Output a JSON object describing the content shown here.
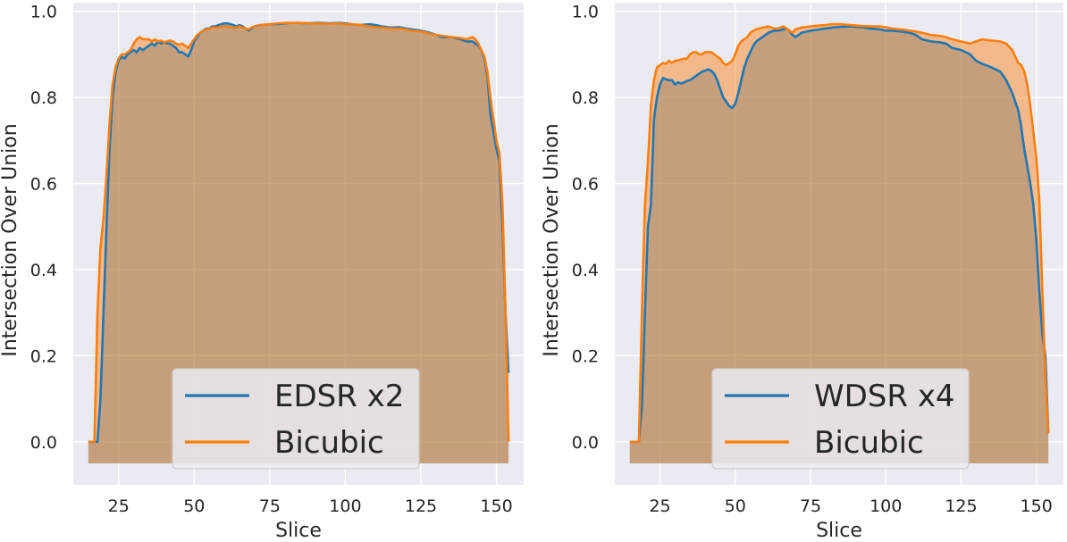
{
  "chart_data": [
    {
      "type": "area",
      "title": "",
      "xlabel": "Slice",
      "ylabel": "Intersection Over Union",
      "xlim": [
        10,
        159
      ],
      "ylim": [
        -0.1,
        1.02
      ],
      "xticks": [
        "25",
        "50",
        "75",
        "100",
        "125",
        "150"
      ],
      "xtick_values": [
        25,
        50,
        75,
        100,
        125,
        150
      ],
      "yticks": [
        "0.0",
        "0.2",
        "0.4",
        "0.6",
        "0.8",
        "1.0"
      ],
      "ytick_values": [
        0,
        0.2,
        0.4,
        0.6,
        0.8,
        1.0
      ],
      "grid": true,
      "fill_baseline": -0.05,
      "legend": {
        "placement": "lower-center"
      },
      "series": [
        {
          "name": "EDSR x2",
          "color": "#1f77b4",
          "x": [
            15,
            16,
            17,
            18,
            19,
            20,
            21,
            22,
            23,
            24,
            25,
            26,
            27,
            28,
            29,
            30,
            31,
            32,
            33,
            34,
            35,
            36,
            37,
            38,
            39,
            40,
            41,
            42,
            43,
            44,
            45,
            46,
            47,
            48,
            49,
            50,
            51,
            52,
            53,
            54,
            55,
            56,
            57,
            58,
            59,
            60,
            61,
            62,
            63,
            64,
            65,
            66,
            67,
            68,
            69,
            70,
            72,
            75,
            78,
            80,
            82,
            85,
            88,
            90,
            92,
            95,
            98,
            100,
            102,
            105,
            108,
            110,
            112,
            115,
            118,
            120,
            122,
            125,
            128,
            130,
            132,
            135,
            138,
            140,
            142,
            143,
            144,
            145,
            146,
            147,
            148,
            149,
            150,
            151,
            152,
            153,
            154
          ],
          "y": [
            0.0,
            0.0,
            0.0,
            0.0,
            0.1,
            0.3,
            0.5,
            0.68,
            0.8,
            0.86,
            0.885,
            0.895,
            0.89,
            0.9,
            0.905,
            0.91,
            0.905,
            0.915,
            0.91,
            0.915,
            0.92,
            0.925,
            0.92,
            0.93,
            0.925,
            0.928,
            0.926,
            0.925,
            0.92,
            0.915,
            0.905,
            0.905,
            0.9,
            0.895,
            0.91,
            0.93,
            0.94,
            0.95,
            0.955,
            0.96,
            0.96,
            0.965,
            0.965,
            0.968,
            0.97,
            0.972,
            0.972,
            0.97,
            0.968,
            0.965,
            0.968,
            0.965,
            0.96,
            0.955,
            0.96,
            0.965,
            0.968,
            0.97,
            0.97,
            0.972,
            0.973,
            0.973,
            0.972,
            0.973,
            0.973,
            0.972,
            0.973,
            0.972,
            0.97,
            0.968,
            0.97,
            0.968,
            0.965,
            0.962,
            0.963,
            0.96,
            0.958,
            0.955,
            0.95,
            0.945,
            0.94,
            0.94,
            0.935,
            0.93,
            0.93,
            0.925,
            0.92,
            0.91,
            0.89,
            0.85,
            0.76,
            0.72,
            0.68,
            0.65,
            0.5,
            0.3,
            0.16
          ]
        },
        {
          "name": "Bicubic",
          "color": "#ff7f0e",
          "x": [
            15,
            16,
            17,
            18,
            19,
            20,
            21,
            22,
            23,
            24,
            25,
            26,
            27,
            28,
            29,
            30,
            31,
            32,
            33,
            34,
            35,
            36,
            37,
            38,
            39,
            40,
            41,
            42,
            43,
            44,
            45,
            46,
            47,
            48,
            49,
            50,
            51,
            52,
            53,
            54,
            55,
            56,
            57,
            58,
            59,
            60,
            61,
            62,
            63,
            64,
            65,
            66,
            67,
            68,
            69,
            70,
            72,
            75,
            78,
            80,
            82,
            85,
            88,
            90,
            92,
            95,
            98,
            100,
            102,
            105,
            108,
            110,
            112,
            115,
            118,
            120,
            122,
            125,
            128,
            130,
            132,
            135,
            138,
            140,
            142,
            143,
            144,
            145,
            146,
            147,
            148,
            149,
            150,
            151,
            152,
            153,
            154
          ],
          "y": [
            0.0,
            0.0,
            0.0,
            0.3,
            0.45,
            0.52,
            0.62,
            0.74,
            0.83,
            0.87,
            0.89,
            0.9,
            0.9,
            0.905,
            0.91,
            0.925,
            0.935,
            0.94,
            0.935,
            0.935,
            0.935,
            0.93,
            0.935,
            0.93,
            0.932,
            0.928,
            0.93,
            0.932,
            0.93,
            0.925,
            0.922,
            0.925,
            0.92,
            0.915,
            0.925,
            0.935,
            0.945,
            0.95,
            0.955,
            0.958,
            0.96,
            0.962,
            0.962,
            0.963,
            0.965,
            0.965,
            0.965,
            0.963,
            0.962,
            0.963,
            0.965,
            0.962,
            0.96,
            0.958,
            0.962,
            0.965,
            0.968,
            0.97,
            0.972,
            0.973,
            0.973,
            0.973,
            0.972,
            0.972,
            0.972,
            0.971,
            0.972,
            0.97,
            0.97,
            0.968,
            0.965,
            0.963,
            0.962,
            0.96,
            0.96,
            0.958,
            0.955,
            0.953,
            0.948,
            0.945,
            0.943,
            0.94,
            0.938,
            0.935,
            0.94,
            0.935,
            0.925,
            0.91,
            0.895,
            0.86,
            0.8,
            0.75,
            0.7,
            0.67,
            0.55,
            0.3,
            0.0
          ]
        }
      ]
    },
    {
      "type": "area",
      "title": "",
      "xlabel": "Slice",
      "ylabel": "Intersection Over Union",
      "xlim": [
        10,
        159
      ],
      "ylim": [
        -0.1,
        1.02
      ],
      "xticks": [
        "25",
        "50",
        "75",
        "100",
        "125",
        "150"
      ],
      "xtick_values": [
        25,
        50,
        75,
        100,
        125,
        150
      ],
      "yticks": [
        "0.0",
        "0.2",
        "0.4",
        "0.6",
        "0.8",
        "1.0"
      ],
      "ytick_values": [
        0,
        0.2,
        0.4,
        0.6,
        0.8,
        1.0
      ],
      "grid": true,
      "fill_baseline": -0.05,
      "legend": {
        "placement": "lower-center"
      },
      "series": [
        {
          "name": "WDSR x4",
          "color": "#1f77b4",
          "x": [
            15,
            16,
            17,
            18,
            19,
            20,
            21,
            22,
            23,
            24,
            25,
            26,
            27,
            28,
            29,
            30,
            31,
            32,
            33,
            34,
            35,
            36,
            37,
            38,
            39,
            40,
            41,
            42,
            43,
            44,
            45,
            46,
            47,
            48,
            49,
            50,
            51,
            52,
            53,
            54,
            55,
            56,
            57,
            58,
            59,
            60,
            61,
            62,
            63,
            64,
            65,
            66,
            67,
            68,
            69,
            70,
            72,
            75,
            78,
            80,
            82,
            85,
            88,
            90,
            92,
            95,
            98,
            100,
            102,
            105,
            108,
            110,
            112,
            115,
            118,
            120,
            122,
            125,
            128,
            130,
            132,
            135,
            138,
            140,
            142,
            144,
            145,
            146,
            147,
            148,
            149,
            150,
            151,
            152,
            153,
            154
          ],
          "y": [
            0.0,
            0.0,
            0.0,
            0.0,
            0.08,
            0.3,
            0.5,
            0.55,
            0.75,
            0.8,
            0.83,
            0.845,
            0.842,
            0.84,
            0.84,
            0.83,
            0.835,
            0.832,
            0.835,
            0.838,
            0.84,
            0.845,
            0.85,
            0.855,
            0.86,
            0.862,
            0.865,
            0.862,
            0.855,
            0.84,
            0.82,
            0.8,
            0.79,
            0.78,
            0.775,
            0.785,
            0.81,
            0.84,
            0.87,
            0.89,
            0.905,
            0.92,
            0.93,
            0.935,
            0.94,
            0.945,
            0.95,
            0.953,
            0.955,
            0.955,
            0.956,
            0.958,
            0.96,
            0.955,
            0.945,
            0.94,
            0.95,
            0.955,
            0.958,
            0.96,
            0.962,
            0.964,
            0.965,
            0.964,
            0.963,
            0.96,
            0.958,
            0.955,
            0.955,
            0.953,
            0.95,
            0.945,
            0.935,
            0.93,
            0.928,
            0.925,
            0.915,
            0.91,
            0.9,
            0.885,
            0.878,
            0.87,
            0.86,
            0.84,
            0.81,
            0.77,
            0.73,
            0.68,
            0.64,
            0.6,
            0.55,
            0.47,
            0.35,
            0.25,
            0.2,
            0.02
          ]
        },
        {
          "name": "Bicubic",
          "color": "#ff7f0e",
          "x": [
            15,
            16,
            17,
            18,
            19,
            20,
            21,
            22,
            23,
            24,
            25,
            26,
            27,
            28,
            29,
            30,
            31,
            32,
            33,
            34,
            35,
            36,
            37,
            38,
            39,
            40,
            41,
            42,
            43,
            44,
            45,
            46,
            47,
            48,
            49,
            50,
            51,
            52,
            53,
            54,
            55,
            56,
            57,
            58,
            59,
            60,
            61,
            62,
            63,
            64,
            65,
            66,
            67,
            68,
            69,
            70,
            72,
            75,
            78,
            80,
            82,
            85,
            88,
            90,
            92,
            95,
            98,
            100,
            102,
            105,
            108,
            110,
            112,
            115,
            118,
            120,
            122,
            125,
            128,
            130,
            132,
            135,
            138,
            140,
            142,
            144,
            145,
            146,
            147,
            148,
            149,
            150,
            151,
            152,
            153,
            154
          ],
          "y": [
            0.0,
            0.0,
            0.0,
            0.0,
            0.3,
            0.55,
            0.65,
            0.78,
            0.84,
            0.87,
            0.875,
            0.88,
            0.878,
            0.885,
            0.88,
            0.885,
            0.886,
            0.888,
            0.89,
            0.89,
            0.9,
            0.905,
            0.905,
            0.9,
            0.9,
            0.905,
            0.905,
            0.905,
            0.9,
            0.895,
            0.89,
            0.88,
            0.875,
            0.88,
            0.885,
            0.9,
            0.92,
            0.93,
            0.935,
            0.94,
            0.95,
            0.955,
            0.958,
            0.96,
            0.962,
            0.963,
            0.965,
            0.962,
            0.96,
            0.96,
            0.962,
            0.965,
            0.96,
            0.955,
            0.95,
            0.958,
            0.962,
            0.965,
            0.967,
            0.968,
            0.97,
            0.97,
            0.968,
            0.967,
            0.966,
            0.965,
            0.965,
            0.963,
            0.96,
            0.958,
            0.955,
            0.953,
            0.95,
            0.945,
            0.943,
            0.94,
            0.935,
            0.93,
            0.925,
            0.93,
            0.935,
            0.932,
            0.93,
            0.925,
            0.91,
            0.88,
            0.875,
            0.86,
            0.83,
            0.78,
            0.72,
            0.66,
            0.56,
            0.35,
            0.15,
            0.02
          ]
        }
      ]
    }
  ]
}
